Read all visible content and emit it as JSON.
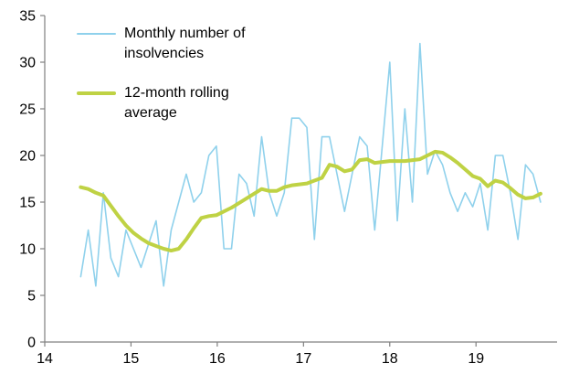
{
  "legend": {
    "items": [
      {
        "label": "Monthly number of\ninsolvencies",
        "color": "#8FD1EC",
        "thickness": 2
      },
      {
        "label": "12-month rolling\naverage",
        "color": "#BFD244",
        "thickness": 4
      }
    ]
  },
  "chart_data": {
    "type": "line",
    "title": "",
    "xlabel": "",
    "ylabel": "",
    "xlim": [
      14,
      19.94
    ],
    "ylim": [
      0,
      35
    ],
    "x_ticks": [
      "14",
      "15",
      "16",
      "17",
      "18",
      "19"
    ],
    "y_ticks": [
      "0",
      "5",
      "10",
      "15",
      "20",
      "25",
      "30",
      "35"
    ],
    "grid": false,
    "legend_position": "top-left",
    "axis_color": "#808080",
    "text_color": "#000000",
    "x_start": 14.417,
    "x_step": 0.0874,
    "series": [
      {
        "name": "Monthly number of insolvencies",
        "color": "#8FD1EC",
        "stroke_width": 1.6,
        "values": [
          7,
          12,
          6,
          16,
          9,
          7,
          12,
          10,
          8,
          10.5,
          13,
          6,
          12,
          15,
          18,
          15,
          16,
          20,
          21,
          10,
          10,
          18,
          17,
          13.5,
          22,
          16,
          13.5,
          16,
          24,
          24,
          23,
          11,
          22,
          22,
          18,
          14,
          18,
          22,
          21,
          12,
          21,
          30,
          13,
          25,
          15,
          32,
          18,
          20.5,
          19,
          16,
          14,
          16,
          14.5,
          17,
          12,
          20,
          20,
          16,
          11,
          19,
          18,
          15
        ]
      },
      {
        "name": "12-month rolling average",
        "color": "#BFD244",
        "stroke_width": 4,
        "values": [
          16.6,
          16.4,
          16.0,
          15.7,
          14.6,
          13.5,
          12.5,
          11.7,
          11.1,
          10.6,
          10.3,
          10.0,
          9.8,
          10.0,
          11.0,
          12.2,
          13.3,
          13.5,
          13.6,
          14.0,
          14.4,
          14.9,
          15.4,
          15.9,
          16.4,
          16.2,
          16.2,
          16.6,
          16.8,
          16.9,
          17.0,
          17.3,
          17.6,
          19.0,
          18.8,
          18.3,
          18.5,
          19.5,
          19.6,
          19.2,
          19.3,
          19.4,
          19.4,
          19.4,
          19.5,
          19.6,
          20.0,
          20.4,
          20.3,
          19.8,
          19.2,
          18.5,
          17.8,
          17.5,
          16.7,
          17.3,
          17.1,
          16.5,
          15.8,
          15.4,
          15.5,
          15.9
        ]
      }
    ]
  }
}
